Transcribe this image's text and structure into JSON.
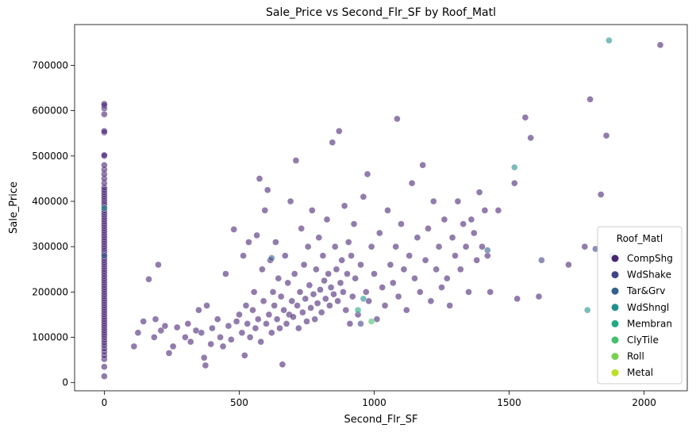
{
  "chart_data": {
    "type": "scatter",
    "title": "Sale_Price vs Second_Flr_SF by Roof_Matl",
    "xlabel": "Second_Flr_SF",
    "ylabel": "Sale_Price",
    "xlim": [
      -110,
      2160
    ],
    "ylim": [
      -18000,
      790000
    ],
    "xticks": [
      0,
      500,
      1000,
      1500,
      2000
    ],
    "yticks": [
      0,
      100000,
      200000,
      300000,
      400000,
      500000,
      600000,
      700000
    ],
    "grid": false,
    "legend": {
      "title": "Roof_Matl",
      "placement": "lower-right",
      "entries": [
        {
          "name": "CompShg",
          "color": "#482475"
        },
        {
          "name": "WdShake",
          "color": "#414487"
        },
        {
          "name": "Tar&Grv",
          "color": "#355f8d"
        },
        {
          "name": "WdShngl",
          "color": "#21918c"
        },
        {
          "name": "Membran",
          "color": "#22a884"
        },
        {
          "name": "ClyTile",
          "color": "#44bf70"
        },
        {
          "name": "Roll",
          "color": "#7ad151"
        },
        {
          "name": "Metal",
          "color": "#bddf26"
        }
      ]
    },
    "point_alpha": 0.6,
    "series": [
      {
        "name": "CompShg",
        "points": [
          [
            0,
            14000
          ],
          [
            0,
            35000
          ],
          [
            0,
            52000
          ],
          [
            0,
            60000
          ],
          [
            0,
            68000
          ],
          [
            0,
            75000
          ],
          [
            0,
            82000
          ],
          [
            0,
            88000
          ],
          [
            0,
            94000
          ],
          [
            0,
            100000
          ],
          [
            0,
            105000
          ],
          [
            0,
            110000
          ],
          [
            0,
            115000
          ],
          [
            0,
            120000
          ],
          [
            0,
            125000
          ],
          [
            0,
            130000
          ],
          [
            0,
            135000
          ],
          [
            0,
            140000
          ],
          [
            0,
            145000
          ],
          [
            0,
            150000
          ],
          [
            0,
            155000
          ],
          [
            0,
            160000
          ],
          [
            0,
            165000
          ],
          [
            0,
            170000
          ],
          [
            0,
            175000
          ],
          [
            0,
            180000
          ],
          [
            0,
            185000
          ],
          [
            0,
            190000
          ],
          [
            0,
            195000
          ],
          [
            0,
            200000
          ],
          [
            0,
            205000
          ],
          [
            0,
            210000
          ],
          [
            0,
            215000
          ],
          [
            0,
            220000
          ],
          [
            0,
            225000
          ],
          [
            0,
            230000
          ],
          [
            0,
            235000
          ],
          [
            0,
            240000
          ],
          [
            0,
            245000
          ],
          [
            0,
            250000
          ],
          [
            0,
            255000
          ],
          [
            0,
            260000
          ],
          [
            0,
            265000
          ],
          [
            0,
            270000
          ],
          [
            0,
            275000
          ],
          [
            0,
            280000
          ],
          [
            0,
            285000
          ],
          [
            0,
            290000
          ],
          [
            0,
            295000
          ],
          [
            0,
            300000
          ],
          [
            0,
            305000
          ],
          [
            0,
            310000
          ],
          [
            0,
            315000
          ],
          [
            0,
            320000
          ],
          [
            0,
            325000
          ],
          [
            0,
            330000
          ],
          [
            0,
            335000
          ],
          [
            0,
            340000
          ],
          [
            0,
            345000
          ],
          [
            0,
            350000
          ],
          [
            0,
            355000
          ],
          [
            0,
            360000
          ],
          [
            0,
            365000
          ],
          [
            0,
            370000
          ],
          [
            0,
            375000
          ],
          [
            0,
            380000
          ],
          [
            0,
            385000
          ],
          [
            0,
            390000
          ],
          [
            0,
            395000
          ],
          [
            0,
            400000
          ],
          [
            0,
            405000
          ],
          [
            0,
            410000
          ],
          [
            0,
            415000
          ],
          [
            0,
            420000
          ],
          [
            0,
            425000
          ],
          [
            0,
            430000
          ],
          [
            0,
            440000
          ],
          [
            0,
            450000
          ],
          [
            0,
            460000
          ],
          [
            0,
            470000
          ],
          [
            0,
            480000
          ],
          [
            0,
            500000
          ],
          [
            0,
            502000
          ],
          [
            0,
            552000
          ],
          [
            0,
            555000
          ],
          [
            0,
            592000
          ],
          [
            0,
            605000
          ],
          [
            0,
            611000
          ],
          [
            0,
            615000
          ],
          [
            110,
            80000
          ],
          [
            125,
            110000
          ],
          [
            145,
            135000
          ],
          [
            165,
            228000
          ],
          [
            185,
            100000
          ],
          [
            190,
            140000
          ],
          [
            200,
            260000
          ],
          [
            210,
            115000
          ],
          [
            225,
            125000
          ],
          [
            240,
            65000
          ],
          [
            255,
            80000
          ],
          [
            270,
            122000
          ],
          [
            300,
            100000
          ],
          [
            310,
            130000
          ],
          [
            320,
            90000
          ],
          [
            340,
            115000
          ],
          [
            350,
            160000
          ],
          [
            360,
            110000
          ],
          [
            370,
            55000
          ],
          [
            375,
            38000
          ],
          [
            380,
            170000
          ],
          [
            395,
            85000
          ],
          [
            400,
            120000
          ],
          [
            420,
            140000
          ],
          [
            430,
            100000
          ],
          [
            440,
            80000
          ],
          [
            450,
            240000
          ],
          [
            460,
            125000
          ],
          [
            470,
            95000
          ],
          [
            480,
            338000
          ],
          [
            490,
            135000
          ],
          [
            500,
            150000
          ],
          [
            510,
            110000
          ],
          [
            515,
            280000
          ],
          [
            520,
            60000
          ],
          [
            525,
            170000
          ],
          [
            530,
            130000
          ],
          [
            535,
            310000
          ],
          [
            540,
            100000
          ],
          [
            550,
            160000
          ],
          [
            555,
            200000
          ],
          [
            560,
            120000
          ],
          [
            565,
            325000
          ],
          [
            570,
            140000
          ],
          [
            575,
            450000
          ],
          [
            580,
            90000
          ],
          [
            585,
            250000
          ],
          [
            590,
            180000
          ],
          [
            595,
            380000
          ],
          [
            600,
            130000
          ],
          [
            605,
            425000
          ],
          [
            610,
            150000
          ],
          [
            615,
            270000
          ],
          [
            620,
            110000
          ],
          [
            625,
            200000
          ],
          [
            630,
            170000
          ],
          [
            635,
            310000
          ],
          [
            640,
            140000
          ],
          [
            645,
            230000
          ],
          [
            650,
            120000
          ],
          [
            655,
            190000
          ],
          [
            660,
            40000
          ],
          [
            665,
            160000
          ],
          [
            670,
            280000
          ],
          [
            675,
            130000
          ],
          [
            680,
            220000
          ],
          [
            685,
            150000
          ],
          [
            690,
            400000
          ],
          [
            695,
            180000
          ],
          [
            700,
            145000
          ],
          [
            705,
            240000
          ],
          [
            710,
            490000
          ],
          [
            715,
            170000
          ],
          [
            720,
            120000
          ],
          [
            725,
            200000
          ],
          [
            730,
            340000
          ],
          [
            735,
            155000
          ],
          [
            740,
            260000
          ],
          [
            745,
            185000
          ],
          [
            750,
            135000
          ],
          [
            755,
            300000
          ],
          [
            760,
            215000
          ],
          [
            765,
            165000
          ],
          [
            770,
            380000
          ],
          [
            775,
            195000
          ],
          [
            780,
            140000
          ],
          [
            785,
            250000
          ],
          [
            790,
            175000
          ],
          [
            795,
            320000
          ],
          [
            800,
            205000
          ],
          [
            805,
            155000
          ],
          [
            810,
            280000
          ],
          [
            815,
            225000
          ],
          [
            820,
            185000
          ],
          [
            825,
            360000
          ],
          [
            830,
            240000
          ],
          [
            835,
            170000
          ],
          [
            840,
            210000
          ],
          [
            845,
            530000
          ],
          [
            850,
            195000
          ],
          [
            855,
            300000
          ],
          [
            860,
            250000
          ],
          [
            865,
            180000
          ],
          [
            870,
            555000
          ],
          [
            875,
            220000
          ],
          [
            880,
            270000
          ],
          [
            885,
            200000
          ],
          [
            890,
            390000
          ],
          [
            895,
            160000
          ],
          [
            900,
            240000
          ],
          [
            905,
            310000
          ],
          [
            910,
            130000
          ],
          [
            915,
            280000
          ],
          [
            920,
            190000
          ],
          [
            925,
            350000
          ],
          [
            930,
            230000
          ],
          [
            940,
            150000
          ],
          [
            950,
            260000
          ],
          [
            960,
            410000
          ],
          [
            970,
            200000
          ],
          [
            975,
            460000
          ],
          [
            980,
            180000
          ],
          [
            990,
            300000
          ],
          [
            1000,
            240000
          ],
          [
            1010,
            140000
          ],
          [
            1020,
            330000
          ],
          [
            1030,
            210000
          ],
          [
            1040,
            170000
          ],
          [
            1050,
            380000
          ],
          [
            1060,
            260000
          ],
          [
            1070,
            220000
          ],
          [
            1080,
            300000
          ],
          [
            1085,
            582000
          ],
          [
            1090,
            190000
          ],
          [
            1100,
            350000
          ],
          [
            1110,
            250000
          ],
          [
            1120,
            160000
          ],
          [
            1130,
            280000
          ],
          [
            1140,
            440000
          ],
          [
            1150,
            230000
          ],
          [
            1160,
            320000
          ],
          [
            1170,
            200000
          ],
          [
            1180,
            480000
          ],
          [
            1190,
            270000
          ],
          [
            1200,
            340000
          ],
          [
            1210,
            180000
          ],
          [
            1220,
            400000
          ],
          [
            1230,
            250000
          ],
          [
            1240,
            300000
          ],
          [
            1250,
            210000
          ],
          [
            1260,
            360000
          ],
          [
            1270,
            230000
          ],
          [
            1280,
            170000
          ],
          [
            1290,
            320000
          ],
          [
            1300,
            280000
          ],
          [
            1310,
            400000
          ],
          [
            1320,
            250000
          ],
          [
            1330,
            350000
          ],
          [
            1340,
            300000
          ],
          [
            1350,
            200000
          ],
          [
            1360,
            360000
          ],
          [
            1370,
            330000
          ],
          [
            1380,
            270000
          ],
          [
            1390,
            420000
          ],
          [
            1400,
            300000
          ],
          [
            1410,
            380000
          ],
          [
            1420,
            280000
          ],
          [
            1430,
            200000
          ],
          [
            1460,
            380000
          ],
          [
            1520,
            440000
          ],
          [
            1530,
            185000
          ],
          [
            1560,
            585000
          ],
          [
            1580,
            540000
          ],
          [
            1610,
            190000
          ],
          [
            1720,
            260000
          ],
          [
            1780,
            300000
          ],
          [
            1800,
            625000
          ],
          [
            1840,
            415000
          ],
          [
            1860,
            545000
          ],
          [
            2060,
            745000
          ]
        ]
      },
      {
        "name": "WdShake",
        "points": [
          [
            1620,
            270000
          ],
          [
            1820,
            295000
          ],
          [
            950,
            130000
          ]
        ]
      },
      {
        "name": "Tar&Grv",
        "points": [
          [
            0,
            280000
          ],
          [
            1420,
            292000
          ],
          [
            620,
            275000
          ],
          [
            1880,
            280000
          ]
        ]
      },
      {
        "name": "WdShngl",
        "points": [
          [
            0,
            385000
          ],
          [
            1520,
            475000
          ],
          [
            1870,
            755000
          ],
          [
            1790,
            160000
          ],
          [
            960,
            185000
          ]
        ]
      },
      {
        "name": "Membran",
        "points": [
          [
            940,
            160000
          ]
        ]
      },
      {
        "name": "ClyTile",
        "points": [
          [
            990,
            135000
          ]
        ]
      },
      {
        "name": "Roll",
        "points": []
      },
      {
        "name": "Metal",
        "points": []
      }
    ]
  }
}
